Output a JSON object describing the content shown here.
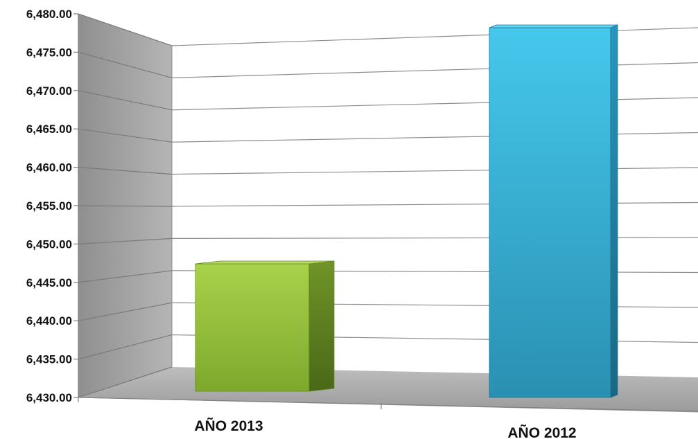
{
  "chart_data": {
    "type": "bar",
    "title": "",
    "xlabel": "",
    "ylabel": "",
    "categories": [
      "AÑO 2013",
      "AÑO 2012"
    ],
    "values": [
      6447,
      6478.5
    ],
    "ylim": [
      6430,
      6480
    ],
    "yticks": [
      "6,480.00",
      "6,475.00",
      "6,470.00",
      "6,465.00",
      "6,460.00",
      "6,455.00",
      "6,450.00",
      "6,445.00",
      "6,440.00",
      "6,435.00",
      "6,430.00"
    ],
    "grid": true,
    "legend": "none",
    "colors": {
      "bar_2013": "#96c23c",
      "bar_2012": "#35b3d8",
      "side_wall": "#a6a6a6",
      "floor": "#b0b0b0",
      "gridline": "#8c8c8c"
    }
  }
}
